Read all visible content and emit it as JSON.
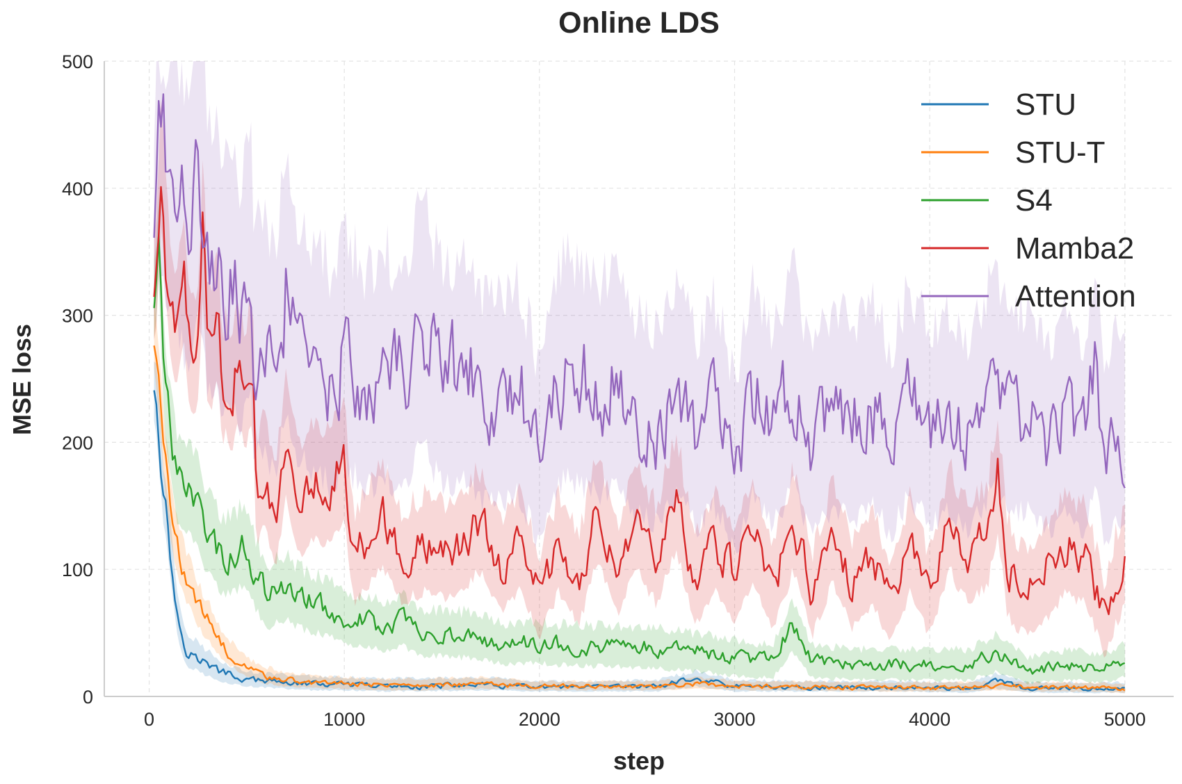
{
  "chart_data": {
    "type": "line",
    "title": "Online LDS",
    "xlabel": "step",
    "ylabel": "MSE loss",
    "xlim": [
      -230,
      5250
    ],
    "ylim": [
      0,
      500
    ],
    "xticks": [
      0,
      1000,
      2000,
      3000,
      4000,
      5000
    ],
    "yticks": [
      0,
      100,
      200,
      300,
      400,
      500
    ],
    "xtick_labels": [
      "0",
      "1000",
      "2000",
      "3000",
      "4000",
      "5000"
    ],
    "ytick_labels": [
      "0",
      "100",
      "200",
      "300",
      "400",
      "500"
    ],
    "grid": true,
    "legend_position": "top-right",
    "series": [
      {
        "name": "STU",
        "color": "#1f77b4",
        "x": [
          25,
          40,
          55,
          70,
          90,
          110,
          130,
          150,
          175,
          200,
          250,
          300,
          350,
          400,
          450,
          500,
          600,
          700,
          800,
          1000,
          1200,
          1400,
          1700,
          2000,
          2300,
          2600,
          2800,
          3000,
          3300,
          3600,
          3900,
          4200,
          4350,
          4500,
          4800,
          5000
        ],
        "y": [
          245,
          235,
          200,
          160,
          145,
          110,
          80,
          60,
          45,
          35,
          30,
          25,
          20,
          18,
          15,
          13,
          12,
          11,
          10,
          9,
          8,
          8,
          9,
          7,
          7,
          8,
          14,
          8,
          7,
          7,
          7,
          6,
          12,
          6,
          6,
          6
        ],
        "lower": [
          220,
          205,
          175,
          140,
          125,
          90,
          65,
          45,
          32,
          24,
          20,
          16,
          13,
          11,
          9,
          8,
          7,
          6,
          5,
          5,
          4,
          4,
          5,
          4,
          4,
          4,
          8,
          4,
          4,
          4,
          4,
          3,
          6,
          3,
          3,
          3
        ],
        "upper": [
          270,
          265,
          230,
          185,
          170,
          135,
          100,
          80,
          62,
          50,
          42,
          36,
          30,
          26,
          22,
          20,
          18,
          17,
          16,
          15,
          14,
          14,
          15,
          12,
          12,
          13,
          20,
          13,
          12,
          12,
          12,
          11,
          18,
          11,
          11,
          11
        ]
      },
      {
        "name": "STU-T",
        "color": "#ff7f0e",
        "x": [
          25,
          40,
          55,
          70,
          90,
          110,
          130,
          150,
          175,
          200,
          250,
          300,
          350,
          400,
          450,
          500,
          600,
          700,
          800,
          1000,
          1200,
          1400,
          1700,
          2000,
          2300,
          2600,
          2800,
          3000,
          3300,
          3600,
          3900,
          4200,
          4350,
          4500,
          4800,
          5000
        ],
        "y": [
          280,
          265,
          240,
          200,
          175,
          150,
          130,
          112,
          100,
          90,
          70,
          60,
          45,
          35,
          28,
          22,
          16,
          13,
          11,
          10,
          9,
          9,
          10,
          8,
          8,
          8,
          10,
          8,
          8,
          7,
          7,
          7,
          8,
          7,
          7,
          6
        ],
        "lower": [
          255,
          240,
          215,
          175,
          150,
          125,
          108,
          92,
          80,
          72,
          55,
          45,
          34,
          26,
          20,
          15,
          10,
          8,
          7,
          6,
          5,
          5,
          6,
          5,
          5,
          5,
          6,
          5,
          5,
          4,
          4,
          4,
          5,
          4,
          4,
          3
        ],
        "upper": [
          305,
          295,
          265,
          225,
          200,
          175,
          155,
          135,
          122,
          110,
          88,
          76,
          58,
          46,
          38,
          30,
          23,
          19,
          17,
          15,
          14,
          14,
          15,
          12,
          12,
          12,
          15,
          12,
          12,
          11,
          11,
          11,
          12,
          11,
          11,
          10
        ]
      },
      {
        "name": "S4",
        "color": "#2ca02c",
        "x": [
          25,
          40,
          50,
          65,
          80,
          100,
          125,
          150,
          175,
          200,
          250,
          300,
          350,
          400,
          450,
          500,
          550,
          600,
          700,
          800,
          900,
          1000,
          1100,
          1200,
          1300,
          1400,
          1500,
          1650,
          1800,
          2000,
          2200,
          2400,
          2600,
          2800,
          3000,
          3200,
          3290,
          3400,
          3600,
          3800,
          4000,
          4200,
          4350,
          4500,
          4700,
          4900,
          5000
        ],
        "y": [
          310,
          330,
          370,
          290,
          240,
          220,
          190,
          170,
          165,
          165,
          150,
          130,
          115,
          110,
          115,
          120,
          95,
          80,
          85,
          75,
          70,
          62,
          60,
          55,
          60,
          50,
          50,
          48,
          42,
          42,
          40,
          40,
          38,
          35,
          30,
          28,
          55,
          28,
          25,
          25,
          25,
          25,
          35,
          20,
          25,
          22,
          28
        ],
        "lower": [
          280,
          300,
          335,
          255,
          205,
          185,
          155,
          135,
          130,
          130,
          115,
          98,
          85,
          80,
          84,
          88,
          68,
          55,
          60,
          52,
          48,
          42,
          40,
          36,
          40,
          32,
          32,
          30,
          26,
          26,
          24,
          24,
          22,
          20,
          16,
          15,
          35,
          15,
          13,
          13,
          13,
          13,
          20,
          10,
          13,
          11,
          15
        ],
        "upper": [
          340,
          360,
          400,
          325,
          275,
          255,
          225,
          205,
          200,
          200,
          185,
          162,
          145,
          140,
          146,
          152,
          122,
          105,
          110,
          98,
          92,
          82,
          80,
          74,
          80,
          68,
          68,
          66,
          58,
          58,
          56,
          56,
          54,
          50,
          44,
          41,
          75,
          41,
          37,
          37,
          37,
          37,
          50,
          30,
          37,
          33,
          41
        ]
      },
      {
        "name": "Mamba2",
        "color": "#d62728",
        "x": [
          25,
          40,
          50,
          65,
          80,
          100,
          125,
          150,
          175,
          200,
          225,
          250,
          275,
          300,
          325,
          350,
          375,
          400,
          425,
          450,
          475,
          500,
          530,
          550,
          600,
          650,
          700,
          750,
          800,
          850,
          900,
          950,
          1000,
          1050,
          1100,
          1200,
          1300,
          1400,
          1500,
          1600,
          1700,
          1800,
          1900,
          2000,
          2100,
          2200,
          2300,
          2400,
          2500,
          2600,
          2700,
          2800,
          2900,
          3000,
          3100,
          3200,
          3300,
          3400,
          3500,
          3600,
          3700,
          3800,
          3900,
          4000,
          4100,
          4200,
          4300,
          4350,
          4400,
          4500,
          4600,
          4700,
          4800,
          4900,
          4950,
          5000
        ],
        "y": [
          320,
          330,
          380,
          430,
          360,
          330,
          300,
          290,
          340,
          280,
          260,
          280,
          370,
          270,
          270,
          300,
          250,
          250,
          235,
          260,
          250,
          240,
          270,
          160,
          180,
          140,
          210,
          160,
          160,
          175,
          165,
          175,
          185,
          110,
          120,
          140,
          110,
          120,
          115,
          120,
          140,
          100,
          120,
          80,
          120,
          90,
          150,
          100,
          140,
          110,
          160,
          90,
          120,
          95,
          130,
          85,
          140,
          80,
          130,
          90,
          110,
          75,
          120,
          80,
          140,
          110,
          130,
          175,
          100,
          80,
          100,
          120,
          110,
          60,
          90,
          110
        ],
        "lower": [
          280,
          290,
          335,
          380,
          315,
          285,
          255,
          245,
          290,
          235,
          215,
          235,
          315,
          225,
          225,
          250,
          205,
          205,
          190,
          212,
          205,
          195,
          220,
          120,
          135,
          100,
          160,
          115,
          115,
          128,
          120,
          128,
          138,
          75,
          82,
          100,
          75,
          82,
          78,
          82,
          100,
          65,
          82,
          48,
          82,
          55,
          108,
          65,
          100,
          72,
          115,
          55,
          82,
          58,
          90,
          52,
          100,
          48,
          90,
          55,
          72,
          45,
          82,
          48,
          100,
          72,
          90,
          130,
          62,
          48,
          62,
          82,
          72,
          32,
          55,
          72
        ],
        "upper": [
          360,
          375,
          425,
          480,
          410,
          378,
          345,
          335,
          390,
          328,
          305,
          325,
          425,
          318,
          318,
          350,
          295,
          295,
          280,
          308,
          295,
          285,
          320,
          200,
          225,
          180,
          260,
          205,
          205,
          222,
          210,
          222,
          232,
          145,
          158,
          180,
          145,
          158,
          152,
          158,
          180,
          135,
          158,
          112,
          158,
          125,
          192,
          135,
          180,
          148,
          205,
          125,
          158,
          132,
          170,
          118,
          180,
          112,
          170,
          125,
          148,
          105,
          158,
          112,
          180,
          148,
          170,
          220,
          138,
          112,
          138,
          158,
          148,
          88,
          125,
          148
        ]
      },
      {
        "name": "Attention",
        "color": "#9467bd",
        "x": [
          25,
          35,
          45,
          55,
          70,
          90,
          110,
          130,
          150,
          175,
          200,
          225,
          250,
          275,
          300,
          325,
          350,
          375,
          400,
          425,
          450,
          475,
          500,
          520,
          540,
          560,
          600,
          650,
          700,
          750,
          800,
          850,
          900,
          950,
          1000,
          1100,
          1200,
          1300,
          1400,
          1500,
          1600,
          1700,
          1800,
          1900,
          2000,
          2100,
          2200,
          2300,
          2400,
          2500,
          2600,
          2700,
          2800,
          2900,
          3000,
          3100,
          3200,
          3300,
          3400,
          3500,
          3600,
          3700,
          3800,
          3900,
          4000,
          4100,
          4200,
          4300,
          4350,
          4400,
          4500,
          4600,
          4700,
          4800,
          4850,
          4900,
          4950,
          5000
        ],
        "y": [
          370,
          420,
          490,
          440,
          450,
          420,
          420,
          390,
          400,
          380,
          370,
          390,
          410,
          380,
          340,
          350,
          360,
          330,
          320,
          330,
          320,
          310,
          320,
          355,
          250,
          295,
          280,
          270,
          320,
          280,
          290,
          250,
          260,
          240,
          270,
          250,
          260,
          250,
          290,
          250,
          260,
          240,
          235,
          240,
          190,
          250,
          260,
          240,
          250,
          220,
          210,
          240,
          210,
          230,
          180,
          240,
          210,
          250,
          200,
          230,
          210,
          230,
          200,
          240,
          210,
          230,
          200,
          240,
          255,
          220,
          230,
          200,
          220,
          200,
          265,
          190,
          215,
          200
        ],
        "lower": [
          300,
          330,
          380,
          340,
          340,
          310,
          310,
          280,
          290,
          270,
          260,
          275,
          290,
          270,
          235,
          245,
          250,
          228,
          222,
          230,
          222,
          215,
          222,
          250,
          165,
          200,
          188,
          180,
          220,
          188,
          196,
          165,
          172,
          158,
          180,
          165,
          172,
          165,
          196,
          165,
          172,
          158,
          154,
          158,
          120,
          165,
          172,
          158,
          165,
          142,
          135,
          158,
          135,
          150,
          112,
          158,
          135,
          165,
          128,
          150,
          135,
          150,
          128,
          158,
          135,
          150,
          128,
          158,
          170,
          142,
          150,
          128,
          142,
          128,
          178,
          120,
          138,
          128
        ],
        "upper": [
          440,
          500,
          500,
          500,
          500,
          500,
          500,
          500,
          500,
          490,
          480,
          500,
          500,
          490,
          445,
          455,
          470,
          432,
          418,
          430,
          418,
          405,
          418,
          460,
          335,
          390,
          372,
          360,
          420,
          372,
          384,
          335,
          348,
          322,
          360,
          335,
          348,
          335,
          384,
          335,
          348,
          322,
          316,
          322,
          260,
          335,
          348,
          322,
          335,
          298,
          285,
          322,
          285,
          310,
          248,
          322,
          285,
          335,
          272,
          310,
          285,
          310,
          272,
          322,
          285,
          310,
          272,
          322,
          340,
          298,
          310,
          272,
          298,
          272,
          352,
          260,
          292,
          272
        ]
      }
    ]
  }
}
